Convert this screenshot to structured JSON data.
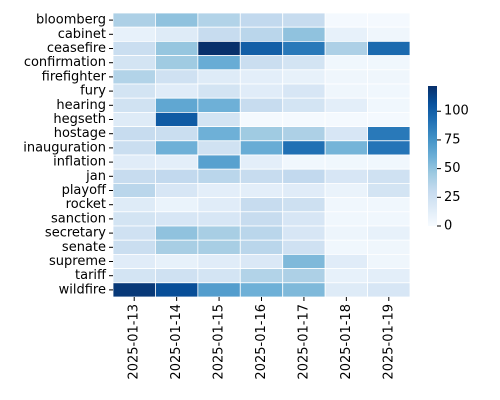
{
  "chart_data": {
    "type": "heatmap",
    "title": "",
    "xlabel": "",
    "ylabel": "",
    "colormap": "Blues",
    "colormap_stops": [
      "#f7fbff",
      "#deebf7",
      "#c6dbef",
      "#9ecae1",
      "#6baed6",
      "#4292c6",
      "#2171b5",
      "#08519c",
      "#08306b"
    ],
    "cell_border_color": "#ffffff",
    "vmin": 0,
    "vmax": 122,
    "colorbar": {
      "ticks": [
        0,
        25,
        50,
        75,
        100
      ],
      "tick_labels": [
        "0",
        "25",
        "50",
        "75",
        "100"
      ]
    },
    "x_categories": [
      "2025-01-13",
      "2025-01-14",
      "2025-01-15",
      "2025-01-16",
      "2025-01-17",
      "2025-01-18",
      "2025-01-19"
    ],
    "y_categories": [
      "bloomberg",
      "cabinet",
      "ceasefire",
      "confirmation",
      "firefighter",
      "fury",
      "hearing",
      "hegseth",
      "hostage",
      "inauguration",
      "inflation",
      "jan",
      "playoff",
      "rocket",
      "sanction",
      "secretary",
      "senate",
      "supreme",
      "tariff",
      "wildfire"
    ],
    "values": [
      [
        40,
        50,
        38,
        32,
        30,
        2,
        2
      ],
      [
        10,
        15,
        30,
        35,
        50,
        10,
        5
      ],
      [
        28,
        48,
        122,
        100,
        88,
        40,
        95
      ],
      [
        22,
        45,
        62,
        28,
        22,
        4,
        4
      ],
      [
        38,
        25,
        15,
        12,
        10,
        5,
        5
      ],
      [
        22,
        14,
        22,
        14,
        20,
        5,
        4
      ],
      [
        24,
        65,
        60,
        30,
        22,
        12,
        4
      ],
      [
        15,
        102,
        22,
        2,
        2,
        2,
        2
      ],
      [
        30,
        28,
        60,
        45,
        40,
        20,
        88
      ],
      [
        28,
        60,
        24,
        62,
        92,
        58,
        90
      ],
      [
        14,
        12,
        68,
        12,
        4,
        4,
        4
      ],
      [
        30,
        32,
        35,
        30,
        32,
        20,
        25
      ],
      [
        35,
        20,
        12,
        12,
        14,
        8,
        22
      ],
      [
        15,
        8,
        14,
        30,
        26,
        4,
        4
      ],
      [
        22,
        20,
        20,
        30,
        20,
        4,
        4
      ],
      [
        25,
        50,
        42,
        35,
        20,
        6,
        10
      ],
      [
        28,
        42,
        42,
        35,
        25,
        4,
        5
      ],
      [
        14,
        10,
        14,
        18,
        55,
        14,
        5
      ],
      [
        22,
        25,
        22,
        38,
        40,
        10,
        12
      ],
      [
        118,
        108,
        70,
        60,
        55,
        15,
        20
      ]
    ]
  }
}
